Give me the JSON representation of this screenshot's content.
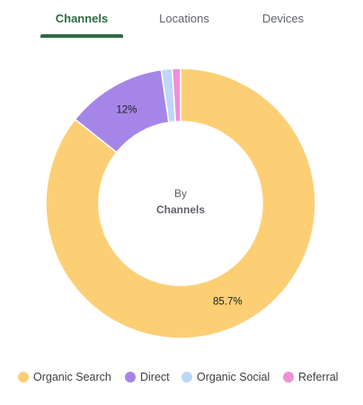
{
  "tabs": [
    {
      "label": "Channels",
      "active": true
    },
    {
      "label": "Locations",
      "active": false
    },
    {
      "label": "Devices",
      "active": false
    }
  ],
  "center_label": {
    "line1": "By",
    "line2": "Channels"
  },
  "chart_data": {
    "type": "pie",
    "donut": true,
    "categories": [
      "Organic Search",
      "Direct",
      "Organic Social",
      "Referral"
    ],
    "values": [
      85.7,
      12,
      1.3,
      1.0
    ],
    "data_labels": [
      "85.7%",
      "12%",
      "",
      ""
    ],
    "colors": [
      "#fccf75",
      "#a585e8",
      "#bed6f8",
      "#ef8fd8"
    ],
    "legend_position": "bottom"
  }
}
